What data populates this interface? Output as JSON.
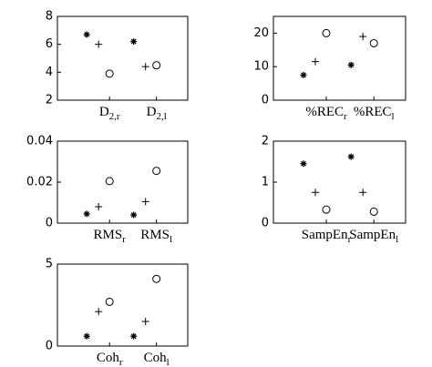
{
  "chart_data": [
    {
      "type": "scatter",
      "categories": [
        "D_{2,r}",
        "D_{2,l}"
      ],
      "ylim": [
        2,
        8
      ],
      "yticks": [
        2,
        4,
        6,
        8
      ],
      "series": [
        {
          "marker": "asterisk",
          "color": "#000000",
          "values": [
            6.7,
            6.2
          ]
        },
        {
          "marker": "plus",
          "color": "#000000",
          "values": [
            6.0,
            4.4
          ]
        },
        {
          "marker": "circle",
          "color": "#000000",
          "values": [
            3.9,
            4.5
          ]
        }
      ]
    },
    {
      "type": "scatter",
      "categories": [
        "%REC_{r}",
        "%REC_{l}"
      ],
      "ylim": [
        0,
        25
      ],
      "yticks": [
        0,
        10,
        20
      ],
      "series": [
        {
          "marker": "asterisk",
          "color": "#000000",
          "values": [
            7.5,
            10.5
          ]
        },
        {
          "marker": "plus",
          "color": "#000000",
          "values": [
            11.5,
            19
          ]
        },
        {
          "marker": "circle",
          "color": "#000000",
          "values": [
            20,
            17
          ]
        }
      ]
    },
    {
      "type": "scatter",
      "categories": [
        "RMS_{r}",
        "RMS_{l}"
      ],
      "ylim": [
        0,
        0.04
      ],
      "yticks": [
        0,
        0.02,
        0.04
      ],
      "series": [
        {
          "marker": "asterisk",
          "color": "#000000",
          "values": [
            0.0045,
            0.004
          ]
        },
        {
          "marker": "plus",
          "color": "#000000",
          "values": [
            0.008,
            0.0105
          ]
        },
        {
          "marker": "circle",
          "color": "#000000",
          "values": [
            0.0205,
            0.0255
          ]
        }
      ]
    },
    {
      "type": "scatter",
      "categories": [
        "SampEn_{r}",
        "SampEn_{l}"
      ],
      "ylim": [
        0,
        2
      ],
      "yticks": [
        0,
        1,
        2
      ],
      "series": [
        {
          "marker": "asterisk",
          "color": "#000000",
          "values": [
            1.45,
            1.62
          ]
        },
        {
          "marker": "plus",
          "color": "#000000",
          "values": [
            0.75,
            0.75
          ]
        },
        {
          "marker": "circle",
          "color": "#000000",
          "values": [
            0.33,
            0.28
          ]
        }
      ]
    },
    {
      "type": "scatter",
      "categories": [
        "Coh_{r}",
        "Coh_{l}"
      ],
      "ylim": [
        0,
        5
      ],
      "yticks": [
        0,
        5
      ],
      "series": [
        {
          "marker": "asterisk",
          "color": "#000000",
          "values": [
            0.6,
            0.6
          ]
        },
        {
          "marker": "plus",
          "color": "#000000",
          "values": [
            2.1,
            1.5
          ]
        },
        {
          "marker": "circle",
          "color": "#000000",
          "values": [
            2.7,
            4.1
          ]
        }
      ]
    }
  ]
}
